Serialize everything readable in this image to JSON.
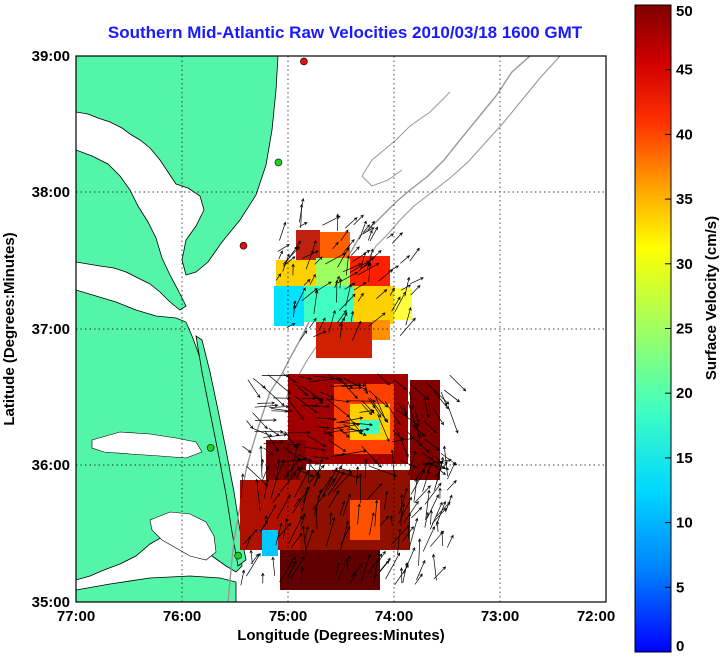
{
  "map": {
    "title": "Southern Mid-Atlantic Raw Velocities 2010/03/18 1600 GMT",
    "xlabel": "Longitude (Degrees:Minutes)",
    "ylabel": "Latitude (Degrees:Minutes)",
    "x_ticks": [
      "77:00",
      "76:00",
      "75:00",
      "74:00",
      "73:00",
      "72:00"
    ],
    "y_ticks": [
      "39:00",
      "38:00",
      "37:00",
      "36:00",
      "35:00"
    ],
    "lon_range": [
      -77,
      -72
    ],
    "lat_range": [
      35,
      39
    ],
    "grid": "dotted",
    "land_color": "#55f5a9",
    "radar_sites": [
      {
        "lon": -74.85,
        "lat": 38.96,
        "color": "#e01010"
      },
      {
        "lon": -75.09,
        "lat": 38.22,
        "color": "#20d020"
      },
      {
        "lon": -75.42,
        "lat": 37.61,
        "color": "#e01010"
      },
      {
        "lon": -75.73,
        "lat": 36.13,
        "color": "#20d020"
      },
      {
        "lon": -75.47,
        "lat": 35.34,
        "color": "#20d020"
      }
    ]
  },
  "colorbar": {
    "label": "Surface Velocity (cm/s)",
    "ticks": [
      "0",
      "5",
      "10",
      "15",
      "20",
      "25",
      "30",
      "35",
      "40",
      "45",
      "50"
    ],
    "min": 0,
    "max": 50,
    "colormap": "jet"
  }
}
